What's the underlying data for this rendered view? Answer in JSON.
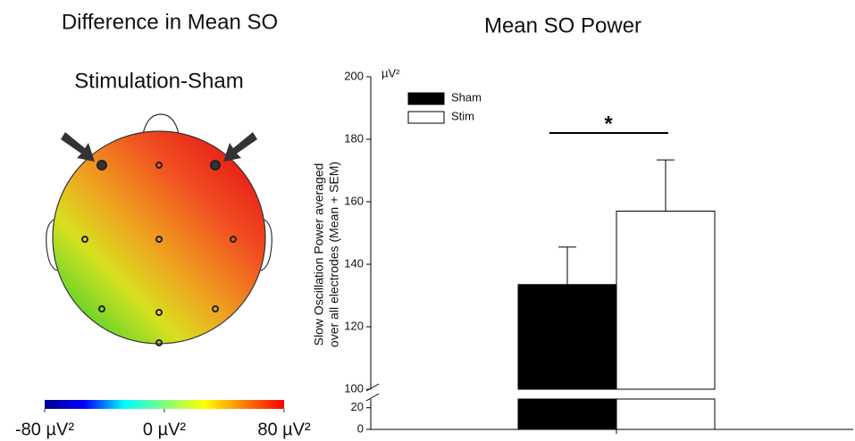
{
  "chart_data": [
    {
      "type": "topomap",
      "title": "Difference in Mean SO",
      "subtitle": "Stimulation-Sham",
      "colormap": [
        "#00008f",
        "#0000ff",
        "#00ffff",
        "#7fff7f",
        "#ffff00",
        "#ff7f00",
        "#ff0000"
      ],
      "clim": [
        -80,
        80
      ],
      "cticks": [
        {
          "value": -80,
          "label": "-80 µV²"
        },
        {
          "value": 0,
          "label": "0 µV²"
        },
        {
          "value": 80,
          "label": "80 µV²"
        }
      ]
    },
    {
      "type": "bar",
      "title": "Mean SO Power",
      "y_label": [
        "Slow Oscillation Power averaged",
        "over all electrodes (Mean + SEM)"
      ],
      "y_unit": "µV²",
      "categories": [
        null
      ],
      "series": [
        {
          "name": "Sham",
          "color": "#000000",
          "values": [
            133.5
          ],
          "errors": [
            12
          ]
        },
        {
          "name": "Stim",
          "color": "#ffffff",
          "values": [
            157
          ],
          "errors": [
            16.4
          ]
        }
      ],
      "ylim": [
        0,
        200
      ],
      "ybreak": [
        28,
        100
      ],
      "yticks": [
        0,
        20,
        100,
        120,
        140,
        160,
        180,
        200
      ],
      "significance": "*",
      "grid": false
    }
  ]
}
